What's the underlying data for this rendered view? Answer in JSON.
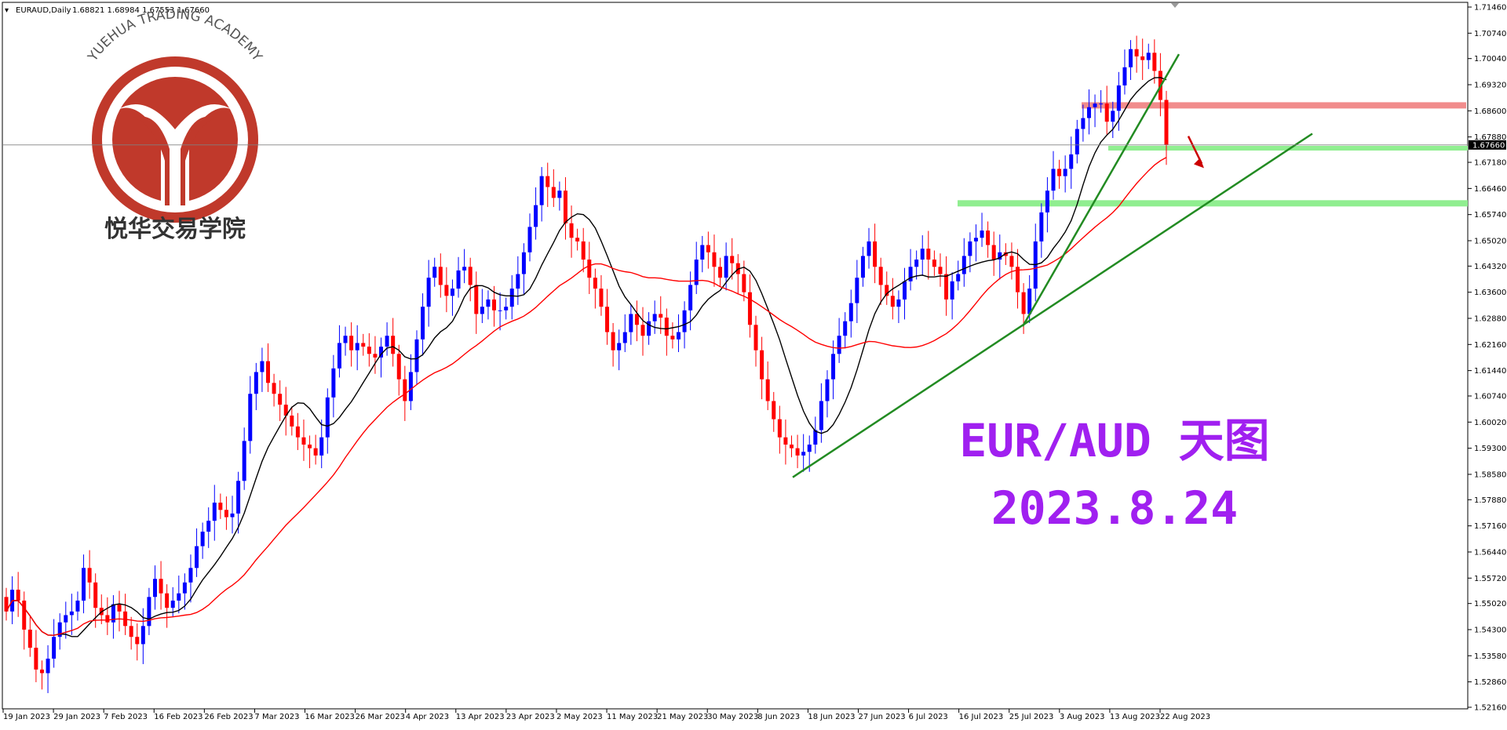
{
  "header": {
    "symbol": "EURAUD,Daily",
    "ohlc": "1.68821 1.68984 1.67553 1.67660"
  },
  "logo": {
    "arc_text": "YUEHUA TRADING ACADEMY",
    "cn_text": "悦华交易学院",
    "color": "#c0392b"
  },
  "overlay": {
    "title": "EUR/AUD 天图",
    "date": "2023.8.24",
    "color": "#a020f0"
  },
  "chart_data": {
    "type": "candlestick",
    "y_ticks": [
      "1.71460",
      "1.70740",
      "1.70040",
      "1.69320",
      "1.68600",
      "1.67880",
      "1.67180",
      "1.66460",
      "1.65740",
      "1.65020",
      "1.64320",
      "1.63600",
      "1.62880",
      "1.62160",
      "1.61440",
      "1.60740",
      "1.60020",
      "1.59300",
      "1.58580",
      "1.57880",
      "1.57160",
      "1.56440",
      "1.55720",
      "1.55020",
      "1.54300",
      "1.53580",
      "1.52860",
      "1.52160"
    ],
    "ylim": [
      1.5216,
      1.7146
    ],
    "x_ticks": [
      "19 Jan 2023",
      "29 Jan 2023",
      "7 Feb 2023",
      "16 Feb 2023",
      "26 Feb 2023",
      "7 Mar 2023",
      "16 Mar 2023",
      "26 Mar 2023",
      "4 Apr 2023",
      "13 Apr 2023",
      "23 Apr 2023",
      "2 May 2023",
      "11 May 2023",
      "21 May 2023",
      "30 May 2023",
      "8 Jun 2023",
      "18 Jun 2023",
      "27 Jun 2023",
      "6 Jul 2023",
      "16 Jul 2023",
      "25 Jul 2023",
      "3 Aug 2023",
      "13 Aug 2023",
      "22 Aug 2023"
    ],
    "current_price": "1.67660",
    "closes": [
      1.548,
      1.554,
      1.551,
      1.543,
      1.538,
      1.532,
      1.531,
      1.535,
      1.541,
      1.545,
      1.547,
      1.548,
      1.551,
      1.56,
      1.556,
      1.549,
      1.547,
      1.545,
      1.55,
      1.548,
      1.544,
      1.541,
      1.539,
      1.544,
      1.552,
      1.557,
      1.553,
      1.549,
      1.551,
      1.553,
      1.556,
      1.56,
      1.566,
      1.57,
      1.573,
      1.578,
      1.576,
      1.574,
      1.575,
      1.584,
      1.595,
      1.608,
      1.614,
      1.617,
      1.611,
      1.608,
      1.605,
      1.602,
      1.599,
      1.596,
      1.594,
      1.593,
      1.591,
      1.596,
      1.607,
      1.615,
      1.622,
      1.624,
      1.62,
      1.622,
      1.621,
      1.619,
      1.618,
      1.621,
      1.624,
      1.619,
      1.612,
      1.606,
      1.614,
      1.623,
      1.632,
      1.64,
      1.643,
      1.638,
      1.635,
      1.637,
      1.642,
      1.643,
      1.638,
      1.63,
      1.632,
      1.634,
      1.631,
      1.631,
      1.632,
      1.637,
      1.641,
      1.647,
      1.654,
      1.66,
      1.668,
      1.665,
      1.662,
      1.664,
      1.655,
      1.651,
      1.65,
      1.645,
      1.64,
      1.637,
      1.632,
      1.625,
      1.62,
      1.622,
      1.625,
      1.63,
      1.627,
      1.624,
      1.628,
      1.63,
      1.629,
      1.624,
      1.623,
      1.625,
      1.631,
      1.638,
      1.645,
      1.649,
      1.647,
      1.643,
      1.64,
      1.646,
      1.644,
      1.641,
      1.636,
      1.627,
      1.62,
      1.612,
      1.606,
      1.601,
      1.596,
      1.594,
      1.593,
      1.591,
      1.592,
      1.594,
      1.598,
      1.606,
      1.612,
      1.619,
      1.624,
      1.628,
      1.633,
      1.64,
      1.646,
      1.65,
      1.643,
      1.638,
      1.635,
      1.632,
      1.634,
      1.639,
      1.643,
      1.645,
      1.648,
      1.645,
      1.643,
      1.641,
      1.634,
      1.639,
      1.641,
      1.646,
      1.65,
      1.651,
      1.653,
      1.649,
      1.645,
      1.647,
      1.646,
      1.643,
      1.636,
      1.63,
      1.637,
      1.65,
      1.658,
      1.664,
      1.67,
      1.668,
      1.67,
      1.674,
      1.681,
      1.684,
      1.687,
      1.688,
      1.688,
      1.683,
      1.686,
      1.693,
      1.698,
      1.703,
      1.701,
      1.7,
      1.702,
      1.697,
      1.689,
      1.6766
    ]
  }
}
